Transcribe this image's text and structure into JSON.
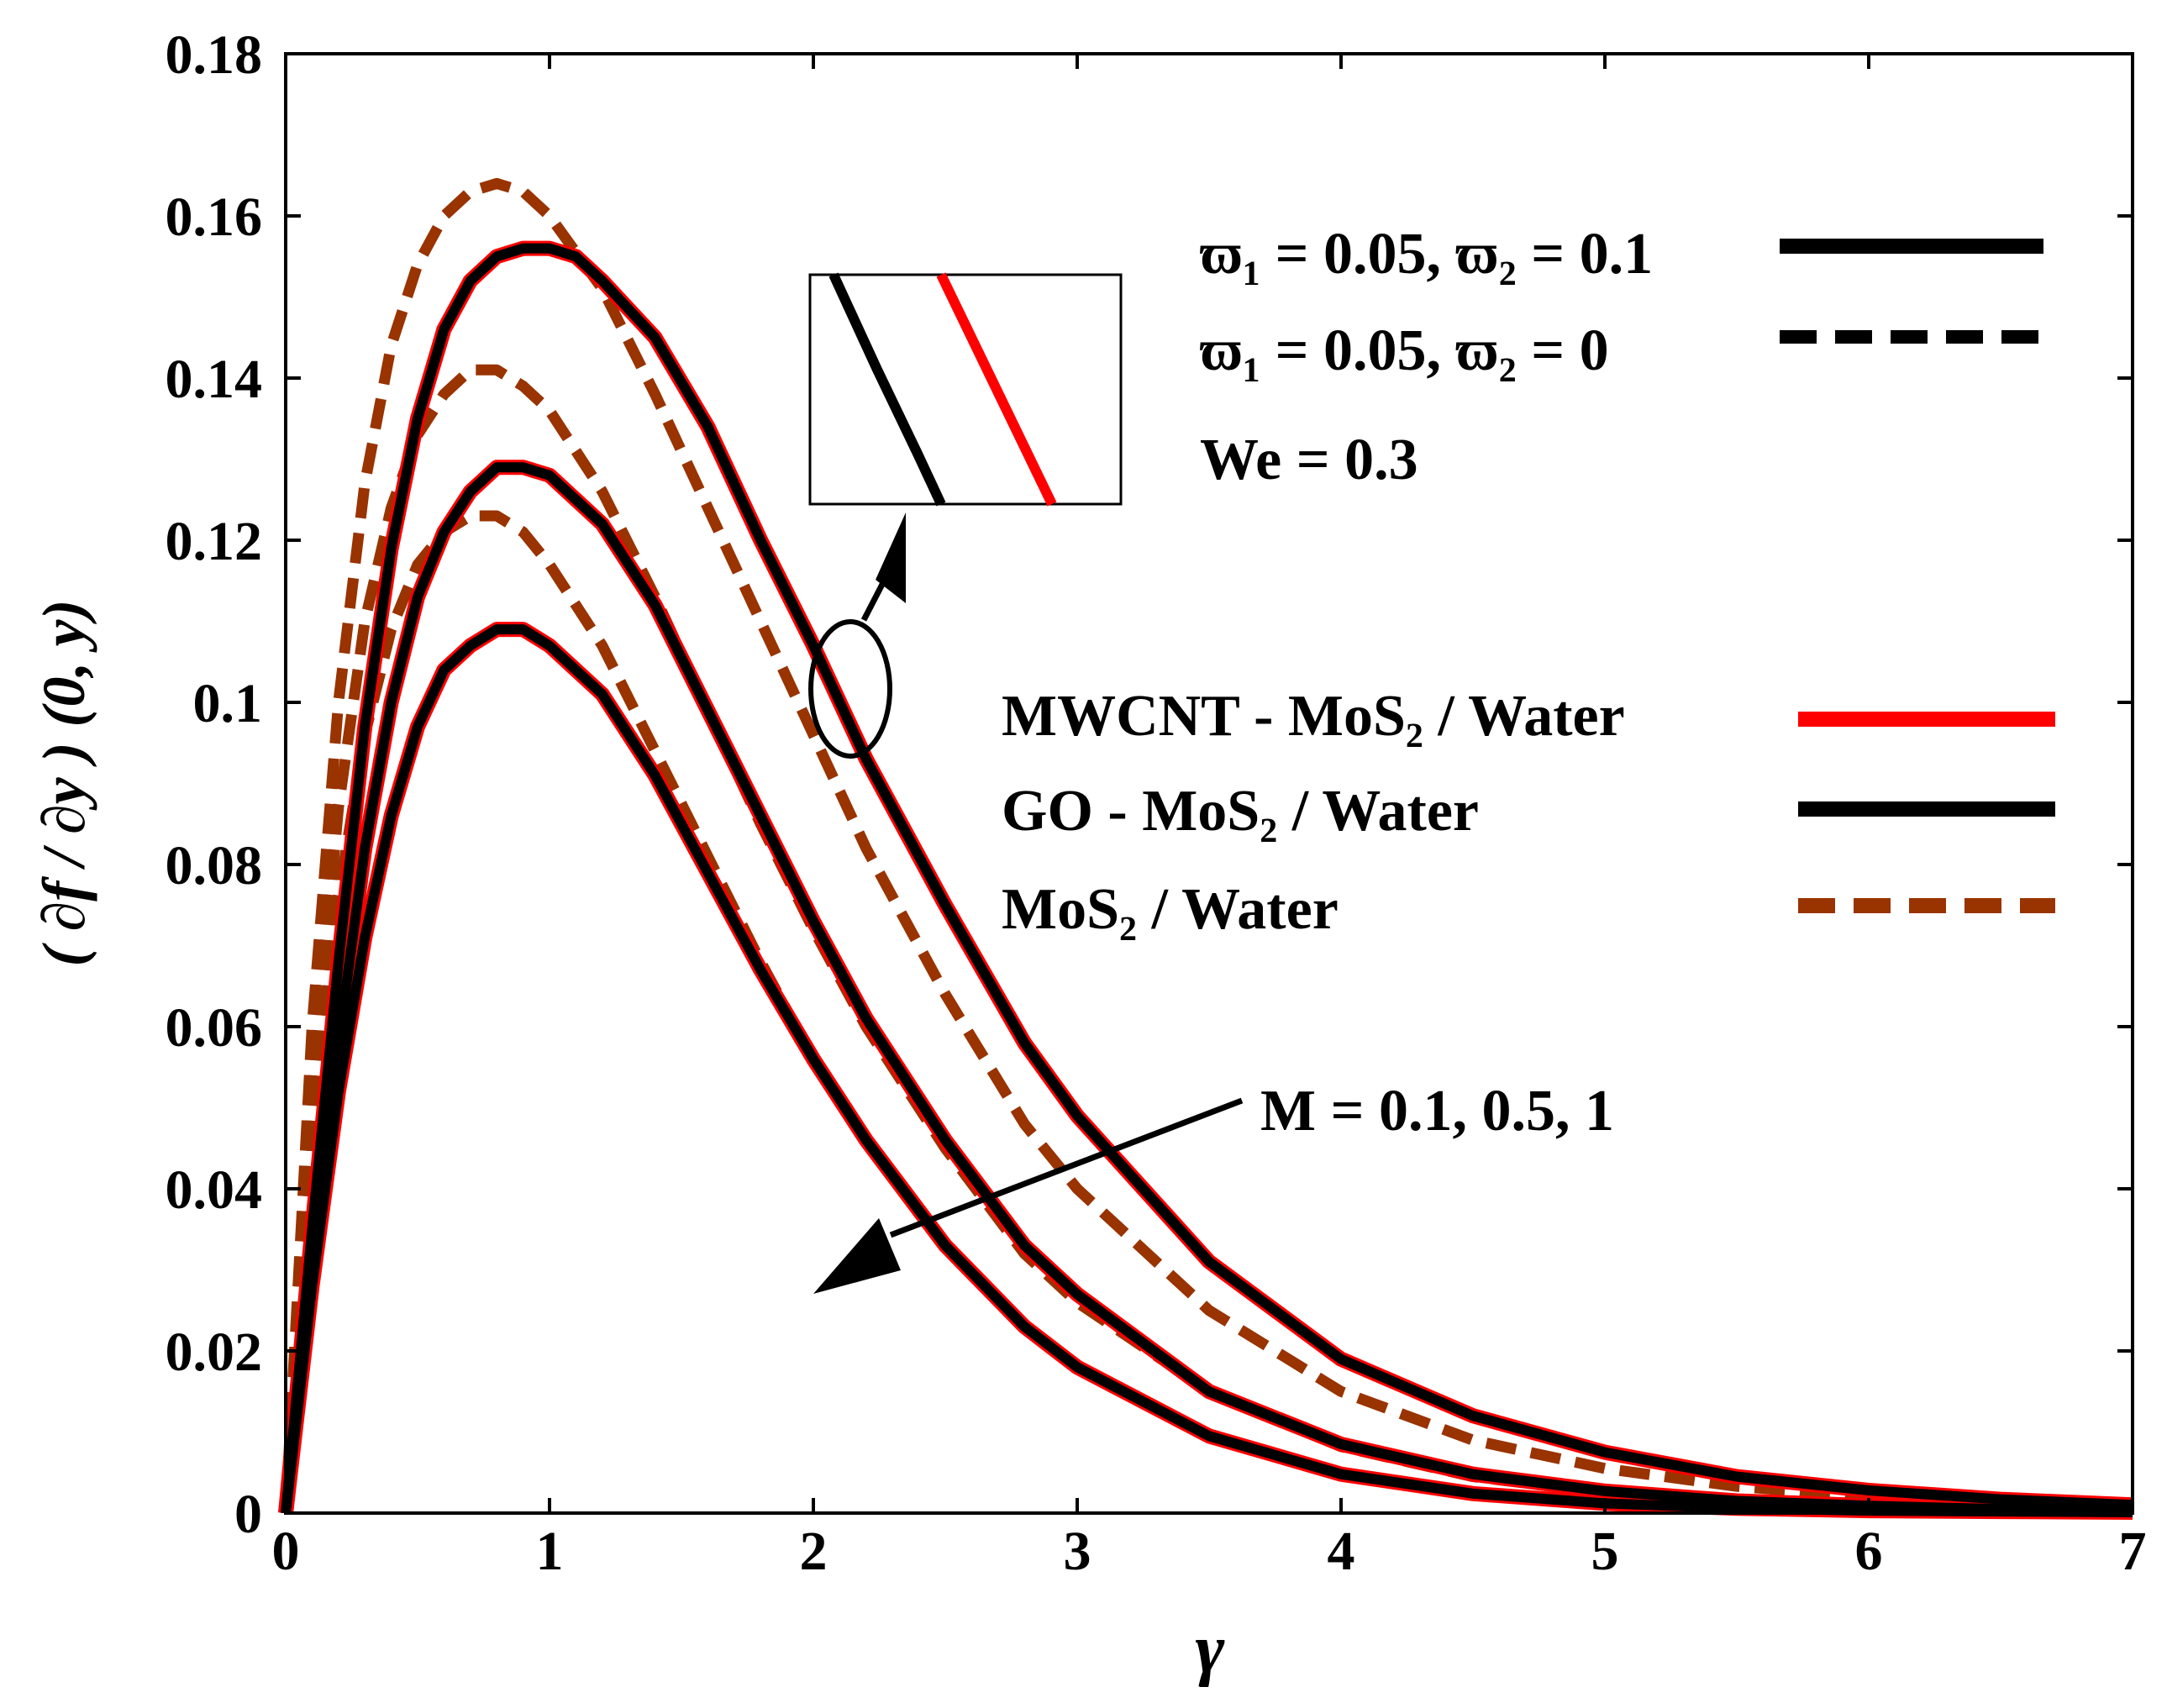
{
  "chart_data": {
    "type": "line",
    "title": "",
    "xlabel": "γ",
    "ylabel": "( ∂f / ∂y ) (0, y)",
    "xlim": [
      0,
      7
    ],
    "ylim": [
      0,
      0.18
    ],
    "xticks": [
      "0",
      "1",
      "2",
      "3",
      "4",
      "5",
      "6",
      "7"
    ],
    "yticks": [
      "0",
      "0.02",
      "0.04",
      "0.06",
      "0.08",
      "0.1",
      "0.12",
      "0.14",
      "0.16",
      "0.18"
    ],
    "grid": false,
    "colors": {
      "mwcnt": "#ff0000",
      "go": "#000000",
      "mos2": "#993300",
      "axis": "#000000"
    },
    "legend_params": [
      {
        "text": "ϖ₁ = 0.05, ϖ₂ = 0.1",
        "style": "solid",
        "color": "#000000"
      },
      {
        "text": "ϖ₁ = 0.05, ϖ₂ = 0",
        "style": "dashed",
        "color": "#000000"
      },
      {
        "text": "We = 0.3"
      }
    ],
    "legend_fluids": [
      {
        "text": "MWCNT - MoS₂ / Water",
        "style": "solid",
        "color": "#ff0000"
      },
      {
        "text": "GO - MoS₂ / Water",
        "style": "solid",
        "color": "#000000"
      },
      {
        "text": "MoS₂ / Water",
        "style": "dashed",
        "color": "#993300"
      }
    ],
    "annotation": "M = 0.1, 0.5, 1",
    "series": [
      {
        "name": "MWCNT-MoS2/Water, M = 0.1",
        "fluid": "mwcnt",
        "style": "solid",
        "M": 0.1,
        "x": [
          0,
          0.1,
          0.2,
          0.3,
          0.4,
          0.5,
          0.6,
          0.7,
          0.8,
          0.9,
          1.0,
          1.1,
          1.2,
          1.4,
          1.6,
          1.8,
          2.0,
          2.2,
          2.5,
          2.8,
          3.0,
          3.5,
          4.0,
          4.5,
          5.0,
          5.5,
          6.0,
          6.5,
          7.0
        ],
        "y": [
          0,
          0.035,
          0.068,
          0.097,
          0.119,
          0.135,
          0.146,
          0.152,
          0.155,
          0.156,
          0.156,
          0.155,
          0.152,
          0.145,
          0.134,
          0.12,
          0.107,
          0.093,
          0.075,
          0.058,
          0.049,
          0.031,
          0.019,
          0.012,
          0.0075,
          0.0045,
          0.0028,
          0.0017,
          0.001
        ]
      },
      {
        "name": "MWCNT-MoS2/Water, M = 0.5",
        "fluid": "mwcnt",
        "style": "solid",
        "M": 0.5,
        "x": [
          0,
          0.1,
          0.2,
          0.3,
          0.4,
          0.5,
          0.6,
          0.7,
          0.8,
          0.9,
          1.0,
          1.2,
          1.4,
          1.6,
          1.8,
          2.0,
          2.2,
          2.5,
          2.8,
          3.0,
          3.5,
          4.0,
          4.5,
          5.0,
          5.5,
          6.0,
          6.5,
          7.0
        ],
        "y": [
          0,
          0.03,
          0.058,
          0.082,
          0.1,
          0.113,
          0.121,
          0.126,
          0.129,
          0.129,
          0.128,
          0.122,
          0.112,
          0.099,
          0.086,
          0.073,
          0.061,
          0.046,
          0.033,
          0.027,
          0.015,
          0.0085,
          0.0048,
          0.0027,
          0.0015,
          0.0009,
          0.0005,
          0.0003
        ]
      },
      {
        "name": "MWCNT-MoS2/Water, M = 1",
        "fluid": "mwcnt",
        "style": "solid",
        "M": 1,
        "x": [
          0,
          0.1,
          0.2,
          0.3,
          0.4,
          0.5,
          0.6,
          0.7,
          0.8,
          0.9,
          1.0,
          1.2,
          1.4,
          1.6,
          1.8,
          2.0,
          2.2,
          2.5,
          2.8,
          3.0,
          3.5,
          4.0,
          4.5,
          5.0,
          5.5,
          6.0,
          6.5,
          7.0
        ],
        "y": [
          0,
          0.028,
          0.052,
          0.071,
          0.086,
          0.097,
          0.104,
          0.107,
          0.109,
          0.109,
          0.107,
          0.101,
          0.091,
          0.079,
          0.067,
          0.056,
          0.046,
          0.033,
          0.023,
          0.018,
          0.0095,
          0.0048,
          0.0024,
          0.0012,
          0.0006,
          0.0003,
          0.0002,
          0.0001
        ]
      },
      {
        "name": "GO-MoS2/Water, M = 0.1",
        "fluid": "go",
        "style": "solid",
        "M": 0.1,
        "x": [
          0,
          0.1,
          0.2,
          0.3,
          0.4,
          0.5,
          0.6,
          0.7,
          0.8,
          0.9,
          1.0,
          1.1,
          1.2,
          1.4,
          1.6,
          1.8,
          2.0,
          2.2,
          2.5,
          2.8,
          3.0,
          3.5,
          4.0,
          4.5,
          5.0,
          5.5,
          6.0,
          6.5,
          7.0
        ],
        "y": [
          0,
          0.035,
          0.068,
          0.097,
          0.119,
          0.135,
          0.146,
          0.152,
          0.155,
          0.156,
          0.156,
          0.155,
          0.152,
          0.145,
          0.134,
          0.12,
          0.107,
          0.093,
          0.075,
          0.058,
          0.049,
          0.031,
          0.019,
          0.012,
          0.0075,
          0.0045,
          0.0028,
          0.0017,
          0.001
        ]
      },
      {
        "name": "GO-MoS2/Water, M = 0.5",
        "fluid": "go",
        "style": "solid",
        "M": 0.5,
        "x": [
          0,
          0.1,
          0.2,
          0.3,
          0.4,
          0.5,
          0.6,
          0.7,
          0.8,
          0.9,
          1.0,
          1.2,
          1.4,
          1.6,
          1.8,
          2.0,
          2.2,
          2.5,
          2.8,
          3.0,
          3.5,
          4.0,
          4.5,
          5.0,
          5.5,
          6.0,
          6.5,
          7.0
        ],
        "y": [
          0,
          0.03,
          0.058,
          0.082,
          0.1,
          0.113,
          0.121,
          0.126,
          0.129,
          0.129,
          0.128,
          0.122,
          0.112,
          0.099,
          0.086,
          0.073,
          0.061,
          0.046,
          0.033,
          0.027,
          0.015,
          0.0085,
          0.0048,
          0.0027,
          0.0015,
          0.0009,
          0.0005,
          0.0003
        ]
      },
      {
        "name": "GO-MoS2/Water, M = 1",
        "fluid": "go",
        "style": "solid",
        "M": 1,
        "x": [
          0,
          0.1,
          0.2,
          0.3,
          0.4,
          0.5,
          0.6,
          0.7,
          0.8,
          0.9,
          1.0,
          1.2,
          1.4,
          1.6,
          1.8,
          2.0,
          2.2,
          2.5,
          2.8,
          3.0,
          3.5,
          4.0,
          4.5,
          5.0,
          5.5,
          6.0,
          6.5,
          7.0
        ],
        "y": [
          0,
          0.028,
          0.052,
          0.071,
          0.086,
          0.097,
          0.104,
          0.107,
          0.109,
          0.109,
          0.107,
          0.101,
          0.091,
          0.079,
          0.067,
          0.056,
          0.046,
          0.033,
          0.023,
          0.018,
          0.0095,
          0.0048,
          0.0024,
          0.0012,
          0.0006,
          0.0003,
          0.0002,
          0.0001
        ]
      },
      {
        "name": "MoS2/Water, M = 0.1",
        "fluid": "mos2",
        "style": "dashed",
        "M": 0.1,
        "x": [
          0,
          0.1,
          0.2,
          0.3,
          0.4,
          0.5,
          0.6,
          0.7,
          0.8,
          0.9,
          1.0,
          1.2,
          1.4,
          1.6,
          1.8,
          2.0,
          2.2,
          2.5,
          2.8,
          3.0,
          3.5,
          4.0,
          4.5,
          5.0,
          5.5,
          6.0,
          6.5,
          7.0
        ],
        "y": [
          0,
          0.06,
          0.1,
          0.127,
          0.144,
          0.154,
          0.16,
          0.163,
          0.164,
          0.163,
          0.16,
          0.151,
          0.138,
          0.124,
          0.11,
          0.096,
          0.082,
          0.064,
          0.048,
          0.04,
          0.025,
          0.015,
          0.009,
          0.0055,
          0.0033,
          0.002,
          0.0012,
          0.0007
        ]
      },
      {
        "name": "MoS2/Water, M = 0.5",
        "fluid": "mos2",
        "style": "dashed",
        "M": 0.5,
        "x": [
          0,
          0.1,
          0.2,
          0.3,
          0.4,
          0.5,
          0.6,
          0.7,
          0.8,
          0.9,
          1.0,
          1.2,
          1.4,
          1.6,
          1.8,
          2.0,
          2.2,
          2.5,
          2.8,
          3.0,
          3.5,
          4.0,
          4.5,
          5.0,
          5.5,
          6.0,
          6.5,
          7.0
        ],
        "y": [
          0,
          0.052,
          0.087,
          0.11,
          0.124,
          0.133,
          0.138,
          0.141,
          0.141,
          0.139,
          0.136,
          0.126,
          0.113,
          0.099,
          0.085,
          0.072,
          0.06,
          0.045,
          0.032,
          0.026,
          0.015,
          0.0082,
          0.0045,
          0.0025,
          0.0014,
          0.0008,
          0.0004,
          0.0002
        ]
      },
      {
        "name": "MoS2/Water, M = 1",
        "fluid": "mos2",
        "style": "dashed",
        "M": 1,
        "x": [
          0,
          0.1,
          0.2,
          0.3,
          0.4,
          0.5,
          0.6,
          0.7,
          0.8,
          0.9,
          1.0,
          1.2,
          1.4,
          1.6,
          1.8,
          2.0,
          2.2,
          2.5,
          2.8,
          3.0,
          3.5,
          4.0,
          4.5,
          5.0,
          5.5,
          6.0,
          6.5,
          7.0
        ],
        "y": [
          0,
          0.045,
          0.076,
          0.096,
          0.109,
          0.117,
          0.121,
          0.123,
          0.123,
          0.121,
          0.117,
          0.107,
          0.094,
          0.081,
          0.068,
          0.056,
          0.046,
          0.033,
          0.023,
          0.018,
          0.0095,
          0.0048,
          0.0024,
          0.0012,
          0.0006,
          0.0003,
          0.0002,
          0.0001
        ]
      }
    ]
  }
}
